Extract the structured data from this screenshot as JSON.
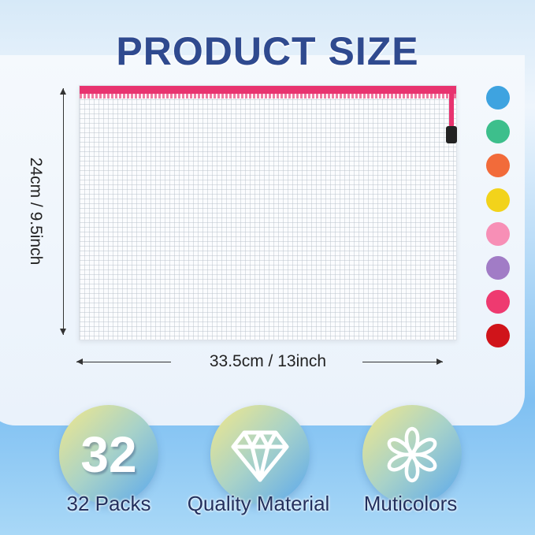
{
  "title": "PRODUCT SIZE",
  "dimensions": {
    "height": "24cm / 9.5inch",
    "width": "33.5cm / 13inch"
  },
  "colors": [
    "#3ea3e0",
    "#3dbf8c",
    "#f26b3a",
    "#f2d31b",
    "#f78fb6",
    "#a17cc6",
    "#ee3a70",
    "#d0141a"
  ],
  "features": [
    {
      "icon": "number-32",
      "value": "32",
      "label": "32 Packs"
    },
    {
      "icon": "diamond-icon",
      "label": "Quality Material"
    },
    {
      "icon": "flower-icon",
      "label": "Muticolors"
    }
  ]
}
